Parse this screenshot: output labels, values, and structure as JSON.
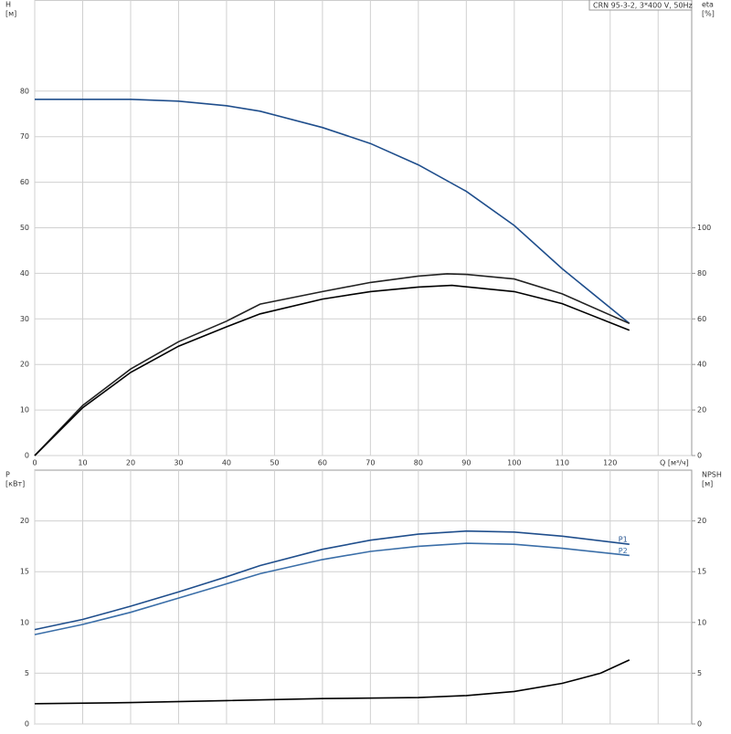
{
  "chart_data": [
    {
      "type": "line",
      "title": "CRN 95-3-2, 3*400 V, 50Hz",
      "xlabel": "Q [м³/ч]",
      "ylabel": [
        "H",
        "[м]"
      ],
      "y2label": [
        "eta",
        "[%]"
      ],
      "xlim": [
        0,
        137
      ],
      "xticks": [
        0,
        10,
        20,
        30,
        40,
        50,
        60,
        70,
        80,
        90,
        100,
        110,
        120
      ],
      "ylim": [
        0,
        100
      ],
      "yticks": [
        0,
        10,
        20,
        30,
        40,
        50,
        60,
        70,
        80
      ],
      "y2lim": [
        0,
        200
      ],
      "y2ticks": [
        0,
        20,
        40,
        60,
        80,
        100
      ],
      "grid": true,
      "series": [
        {
          "color": "#1f4e8c",
          "x": [
            0,
            10,
            20,
            30,
            40,
            47,
            60,
            70,
            80,
            90,
            100,
            110,
            124
          ],
          "values": [
            78.2,
            78.2,
            78.2,
            77.8,
            76.8,
            75.6,
            72,
            68.5,
            63.8,
            58,
            50.5,
            41,
            29
          ]
        },
        {
          "color": "#222222",
          "axis": "y2",
          "x": [
            0,
            10,
            20,
            30,
            40,
            47,
            60,
            70,
            80,
            86,
            90,
            100,
            110,
            124
          ],
          "values": [
            0,
            22,
            38,
            50,
            59,
            66.5,
            72,
            76,
            78.8,
            79.8,
            79.5,
            77.5,
            71,
            58
          ]
        },
        {
          "color": "#000000",
          "axis": "y2",
          "x": [
            0,
            10,
            20,
            30,
            40,
            47,
            60,
            70,
            80,
            87,
            100,
            110,
            124
          ],
          "values": [
            0,
            21,
            36.5,
            48,
            56.5,
            62.2,
            68.7,
            72,
            74,
            74.7,
            72,
            66.7,
            55
          ]
        }
      ]
    },
    {
      "type": "line",
      "ylabel": [
        "P",
        "[кВт]"
      ],
      "y2label": [
        "NPSH",
        "[м]"
      ],
      "xlim": [
        0,
        137
      ],
      "ylim": [
        0,
        25
      ],
      "yticks": [
        0,
        5,
        10,
        15,
        20
      ],
      "y2lim": [
        0,
        25
      ],
      "y2ticks": [
        0,
        5,
        10,
        15,
        20
      ],
      "grid": true,
      "series": [
        {
          "name": "P1",
          "color": "#1f4e8c",
          "x": [
            0,
            10,
            20,
            30,
            40,
            47,
            60,
            70,
            80,
            90,
            100,
            110,
            124
          ],
          "values": [
            9.3,
            10.3,
            11.6,
            13,
            14.5,
            15.6,
            17.2,
            18.1,
            18.7,
            19,
            18.9,
            18.5,
            17.7
          ]
        },
        {
          "name": "P2",
          "color": "#3a6ea8",
          "x": [
            0,
            10,
            20,
            30,
            40,
            47,
            60,
            70,
            80,
            90,
            100,
            110,
            124
          ],
          "values": [
            8.8,
            9.8,
            11,
            12.4,
            13.8,
            14.8,
            16.2,
            17,
            17.5,
            17.8,
            17.7,
            17.3,
            16.6
          ]
        },
        {
          "color": "#000000",
          "axis": "y2",
          "x": [
            0,
            20,
            40,
            60,
            80,
            90,
            100,
            110,
            118,
            124
          ],
          "values": [
            2,
            2.1,
            2.3,
            2.5,
            2.6,
            2.8,
            3.2,
            4,
            5,
            6.3
          ]
        }
      ]
    }
  ]
}
